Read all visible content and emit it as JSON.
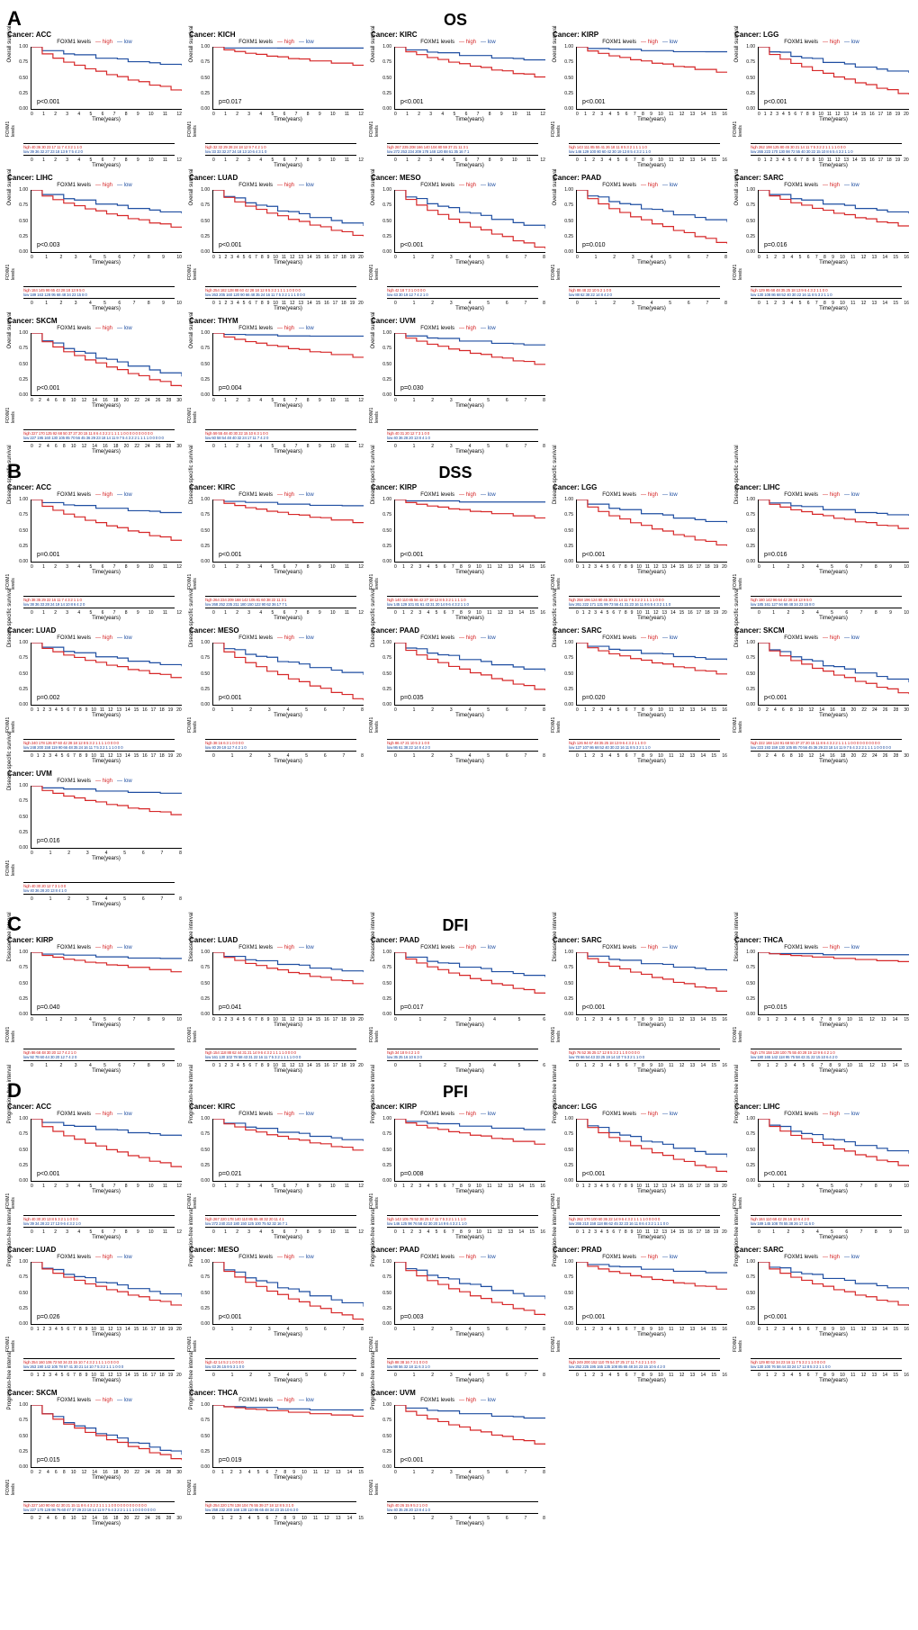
{
  "colors": {
    "high": "#d62728",
    "low": "#1f4ea1",
    "axis": "#000000",
    "bg": "#ffffff"
  },
  "legend_label": "FOXM1 levels",
  "legend_high": "high",
  "legend_low": "low",
  "xlabel": "Time(years)",
  "risk_ylabel": "FOXM1 levels",
  "risk_high_prefix": "high",
  "risk_low_prefix": "low",
  "yticks": [
    "0.00",
    "0.25",
    "0.50",
    "0.75",
    "1.00"
  ],
  "sections": [
    {
      "letter": "A",
      "title": "OS",
      "ylabel": "Overall survival",
      "panels": [
        {
          "cancer": "ACC",
          "p": "p<0.001",
          "xmax": 12,
          "high_end": 0.28,
          "low_end": 0.7,
          "risk_h": "40 36 30 23 17 11 7 4 3 2 1 1 0",
          "risk_l": "39 36 32 27 23 18 13 9 7 5 4 2 0"
        },
        {
          "cancer": "KICH",
          "p": "p=0.017",
          "xmax": 12,
          "high_end": 0.7,
          "low_end": 0.98,
          "risk_h": "32 32 29 28 24 18 12 9 7 4 2 1 0",
          "risk_l": "33 33 32 27 24 18 13 10 6 4 3 1 0"
        },
        {
          "cancer": "KIRC",
          "p": "p<0.001",
          "xmax": 12,
          "high_end": 0.5,
          "low_end": 0.78,
          "risk_h": "267 235 208 166 140 104 80 59 37 21 11 3 1",
          "risk_l": "272 253 234 209 178 148 120 88 61 35 16 7 1"
        },
        {
          "cancer": "KIRP",
          "p": "p<0.001",
          "xmax": 16,
          "high_end": 0.58,
          "low_end": 0.92,
          "risk_h": "143 111 85 55 41 26 18 11 8 5 3 2 1 1 1 1 0",
          "risk_l": "146 129 100 80 60 42 30 19 13 8 5 4 3 2 1 1 0"
        },
        {
          "cancer": "LGG",
          "p": "p<0.001",
          "xmax": 20,
          "high_end": 0.22,
          "low_end": 0.58,
          "risk_h": "262 198 125 80 45 30 21 14 11 7 5 3 2 2 1 1 1 1 0 0 0",
          "risk_l": "265 223 170 130 98 72 55 40 30 22 15 10 8 6 5 4 3 2 1 1 0"
        },
        {
          "cancer": "LIHC",
          "p": "p<0.003",
          "xmax": 10,
          "high_end": 0.38,
          "low_end": 0.62,
          "risk_h": "184 145 98 65 43 28 18 13 9 5 0",
          "risk_l": "189 163 128 95 68 48 34 23 15 8 0"
        },
        {
          "cancer": "LUAD",
          "p": "p<0.001",
          "xmax": 20,
          "high_end": 0.24,
          "low_end": 0.42,
          "risk_h": "254 182 128 88 60 42 28 18 12 8 5 3 2 1 1 1 1 0 0 0 0",
          "risk_l": "263 205 160 120 90 66 48 35 24 16 11 7 5 3 2 1 1 1 0 0 0"
        },
        {
          "cancer": "MESO",
          "p": "p<0.001",
          "xmax": 8,
          "high_end": 0.04,
          "low_end": 0.38,
          "risk_h": "42 18 7 3 1 0 0 0 0",
          "risk_l": "43 30 19 12 7 4 2 1 0"
        },
        {
          "cancer": "PAAD",
          "p": "p=0.010",
          "xmax": 8,
          "high_end": 0.12,
          "low_end": 0.48,
          "risk_h": "88 48 22 10 5 2 1 0 0",
          "risk_l": "88 62 38 22 14 8 4 2 0"
        },
        {
          "cancer": "SARC",
          "p": "p=0.016",
          "xmax": 16,
          "high_end": 0.4,
          "low_end": 0.62,
          "risk_h": "129 95 68 48 35 25 18 13 9 6 4 3 2 1 1 0 0",
          "risk_l": "130 108 86 68 52 40 30 22 16 11 8 5 3 2 1 1 0"
        },
        {
          "cancer": "SKCM",
          "p": "p<0.001",
          "xmax": 30,
          "high_end": 0.12,
          "low_end": 0.3,
          "risk_h": "227 170 125 92 68 50 37 27 20 15 11 8 6 4 3 2 2 1 1 1 1 0 0 0 0 0 0 0 0 0 0",
          "risk_l": "227 195 160 130 105 85 70 56 45 36 29 23 18 14 11 9 7 5 4 3 2 2 1 1 1 1 0 0 0 0 0"
        },
        {
          "cancer": "THYM",
          "p": "p=0.004",
          "xmax": 12,
          "high_end": 0.6,
          "low_end": 0.95,
          "risk_h": "59 55 48 40 30 22 15 10 6 3 1 0 0",
          "risk_l": "60 58 54 48 40 32 24 17 11 7 4 2 0"
        },
        {
          "cancer": "UVM",
          "p": "p=0.030",
          "xmax": 8,
          "high_end": 0.48,
          "low_end": 0.8,
          "risk_h": "40 31 20 12 7 3 1 0 0",
          "risk_l": "40 36 28 20 13 8 4 1 0"
        }
      ]
    },
    {
      "letter": "B",
      "title": "DSS",
      "ylabel": "Disease-specific survival",
      "panels": [
        {
          "cancer": "ACC",
          "p": "p=0.001",
          "xmax": 12,
          "high_end": 0.32,
          "low_end": 0.78,
          "risk_h": "38 35 29 22 16 11 7 4 3 2 1 1 0",
          "risk_l": "38 36 33 28 24 19 14 10 8 6 4 2 0"
        },
        {
          "cancer": "KIRC",
          "p": "p<0.001",
          "xmax": 12,
          "high_end": 0.62,
          "low_end": 0.9,
          "risk_h": "264 234 209 168 142 105 81 60 38 22 11 3 1",
          "risk_l": "268 252 235 211 180 150 122 90 62 36 17 7 1"
        },
        {
          "cancer": "KIRP",
          "p": "p<0.001",
          "xmax": 16,
          "high_end": 0.7,
          "low_end": 0.96,
          "risk_h": "140 110 85 56 42 27 18 12 8 5 3 2 1 1 1 1 0",
          "risk_l": "145 129 101 81 61 43 31 20 14 9 6 4 3 2 1 1 0"
        },
        {
          "cancer": "LGG",
          "p": "p<0.001",
          "xmax": 20,
          "high_end": 0.24,
          "low_end": 0.62,
          "risk_h": "258 196 124 80 45 30 21 14 11 7 5 3 2 2 1 1 1 1 0 0 0",
          "risk_l": "261 222 171 131 99 73 56 41 31 23 16 11 8 6 5 4 3 2 1 1 0"
        },
        {
          "cancer": "LIHC",
          "p": "p=0.016",
          "xmax": 10,
          "high_end": 0.52,
          "low_end": 0.74,
          "risk_h": "180 142 96 64 42 28 18 13 9 5 0",
          "risk_l": "185 161 127 94 68 48 34 23 15 8 0"
        },
        {
          "cancer": "LUAD",
          "p": "p=0.002",
          "xmax": 20,
          "high_end": 0.42,
          "low_end": 0.62,
          "risk_h": "240 178 126 87 60 42 28 18 12 8 5 3 2 1 1 1 1 0 0 0 0",
          "risk_l": "248 200 158 119 90 66 48 35 24 16 11 7 5 3 2 1 1 1 0 0 0"
        },
        {
          "cancer": "MESO",
          "p": "p<0.001",
          "xmax": 8,
          "high_end": 0.06,
          "low_end": 0.48,
          "risk_h": "38 16 6 3 1 0 0 0 0",
          "risk_l": "40 29 19 12 7 4 2 1 0"
        },
        {
          "cancer": "PAAD",
          "p": "p=0.035",
          "xmax": 8,
          "high_end": 0.22,
          "low_end": 0.54,
          "risk_h": "86 47 21 10 5 2 1 0 0",
          "risk_l": "86 61 38 22 14 8 4 2 0"
        },
        {
          "cancer": "SARC",
          "p": "p=0.020",
          "xmax": 16,
          "high_end": 0.48,
          "low_end": 0.72,
          "risk_h": "126 94 67 48 35 25 18 13 9 6 4 3 2 1 1 0 0",
          "risk_l": "127 107 86 68 52 40 30 22 16 11 8 5 3 2 1 1 0"
        },
        {
          "cancer": "SKCM",
          "p": "p<0.001",
          "xmax": 30,
          "high_end": 0.16,
          "low_end": 0.36,
          "risk_h": "222 168 124 91 68 50 37 27 20 15 11 8 6 4 3 2 2 1 1 1 1 0 0 0 0 0 0 0 0 0 0",
          "risk_l": "223 193 159 130 105 85 70 56 45 36 29 23 18 14 11 9 7 5 4 3 2 2 1 1 1 1 0 0 0 0 0"
        },
        {
          "cancer": "UVM",
          "p": "p=0.016",
          "xmax": 8,
          "high_end": 0.52,
          "low_end": 0.88,
          "risk_h": "40 30 20 12 7 3 1 0 0",
          "risk_l": "40 36 28 20 13 8 4 1 0"
        }
      ]
    },
    {
      "letter": "C",
      "title": "DFI",
      "ylabel": "Disease-free interval",
      "panels": [
        {
          "cancer": "KIRP",
          "p": "p=0.040",
          "xmax": 10,
          "high_end": 0.68,
          "low_end": 0.9,
          "risk_h": "86 68 48 30 20 12 7 4 2 1 0",
          "risk_l": "92 78 60 44 30 20 12 7 4 2 0"
        },
        {
          "cancer": "LUAD",
          "p": "p=0.041",
          "xmax": 20,
          "high_end": 0.48,
          "low_end": 0.68,
          "risk_h": "154 118 88 62 44 31 21 14 9 6 4 3 2 1 1 1 1 0 0 0 0",
          "risk_l": "161 130 102 78 58 43 31 22 16 11 7 5 3 2 1 1 1 1 0 0 0"
        },
        {
          "cancer": "PAAD",
          "p": "p=0.017",
          "xmax": 6,
          "high_end": 0.32,
          "low_end": 0.6,
          "risk_h": "34 18 9 4 2 1 0",
          "risk_l": "35 25 16 10 6 3 0"
        },
        {
          "cancer": "SARC",
          "p": "p<0.001",
          "xmax": 16,
          "high_end": 0.35,
          "low_end": 0.7,
          "risk_h": "76 52 36 25 17 12 8 5 3 2 1 1 0 0 0 0 0",
          "risk_l": "78 66 54 43 33 25 19 14 10 7 5 3 2 1 1 0 0"
        },
        {
          "cancer": "THCA",
          "p": "p=0.015",
          "xmax": 15,
          "high_end": 0.85,
          "low_end": 0.96,
          "risk_h": "178 158 128 100 75 55 40 28 19 13 9 6 4 2 1 0",
          "risk_l": "180 165 142 118 95 75 58 43 31 22 15 10 6 4 2 0"
        }
      ]
    },
    {
      "letter": "D",
      "title": "PFI",
      "ylabel": "Progression-free interval",
      "panels": [
        {
          "cancer": "ACC",
          "p": "p<0.001",
          "xmax": 12,
          "high_end": 0.2,
          "low_end": 0.72,
          "risk_h": "40 30 20 13 8 5 3 2 1 1 0 0 0",
          "risk_l": "39 34 28 22 17 13 9 6 4 3 2 1 0"
        },
        {
          "cancer": "KIRC",
          "p": "p=0.021",
          "xmax": 12,
          "high_end": 0.48,
          "low_end": 0.64,
          "risk_h": "267 220 178 140 110 85 65 48 32 20 11 4 1",
          "risk_l": "272 240 210 180 150 125 100 75 52 32 16 7 1"
        },
        {
          "cancer": "KIRP",
          "p": "p=0.008",
          "xmax": 16,
          "high_end": 0.58,
          "low_end": 0.82,
          "risk_h": "143 105 78 52 38 25 17 11 7 5 3 2 1 1 1 1 0",
          "risk_l": "146 125 98 76 58 42 30 20 14 9 6 4 3 2 1 1 0"
        },
        {
          "cancer": "LGG",
          "p": "p<0.001",
          "xmax": 20,
          "high_end": 0.12,
          "low_end": 0.38,
          "risk_h": "262 170 100 60 36 22 14 9 6 4 3 2 1 1 1 1 0 0 0 0 0",
          "risk_l": "265 210 158 118 86 62 45 32 23 16 11 8 6 4 3 2 1 1 1 0 0"
        },
        {
          "cancer": "LIHC",
          "p": "p<0.001",
          "xmax": 10,
          "high_end": 0.22,
          "low_end": 0.44,
          "risk_h": "184 110 68 42 26 16 10 6 4 2 0",
          "risk_l": "189 145 108 78 55 38 26 17 11 6 0"
        },
        {
          "cancer": "LUAD",
          "p": "p=0.026",
          "xmax": 20,
          "high_end": 0.28,
          "low_end": 0.44,
          "risk_h": "254 160 106 72 50 34 23 15 10 7 4 3 2 1 1 1 1 0 0 0 0",
          "risk_l": "263 190 142 105 78 57 41 30 21 14 10 7 5 3 2 1 1 1 0 0 0"
        },
        {
          "cancer": "MESO",
          "p": "p<0.001",
          "xmax": 8,
          "high_end": 0.04,
          "low_end": 0.28,
          "risk_h": "42 14 5 2 1 0 0 0 0",
          "risk_l": "43 26 15 9 5 3 1 0 0"
        },
        {
          "cancer": "PAAD",
          "p": "p=0.003",
          "xmax": 8,
          "high_end": 0.12,
          "low_end": 0.4,
          "risk_h": "88 38 16 7 3 1 0 0 0",
          "risk_l": "88 56 32 18 11 6 3 1 0"
        },
        {
          "cancer": "PRAD",
          "p": "p<0.001",
          "xmax": 16,
          "high_end": 0.55,
          "low_end": 0.82,
          "risk_h": "249 200 152 110 78 54 37 25 17 11 7 4 2 1 1 0 0",
          "risk_l": "252 225 195 165 135 108 85 65 48 34 23 15 10 6 4 2 0"
        },
        {
          "cancer": "SARC",
          "p": "p<0.001",
          "xmax": 16,
          "high_end": 0.28,
          "low_end": 0.55,
          "risk_h": "129 80 52 34 23 16 11 7 5 3 2 1 1 0 0 0 0",
          "risk_l": "130 100 76 58 44 33 24 17 12 8 5 3 2 1 1 0 0"
        },
        {
          "cancer": "SKCM",
          "p": "p=0.015",
          "xmax": 30,
          "high_end": 0.1,
          "low_end": 0.2,
          "risk_h": "227 140 90 60 42 30 21 15 11 8 6 4 3 2 2 1 1 1 1 0 0 0 0 0 0 0 0 0 0 0 0",
          "risk_l": "227 170 128 98 76 60 47 37 29 23 18 14 11 9 7 5 4 3 2 2 1 1 1 1 0 0 0 0 0 0 0"
        },
        {
          "cancer": "THCA",
          "p": "p=0.019",
          "xmax": 15,
          "high_end": 0.82,
          "low_end": 0.92,
          "risk_h": "254 220 178 138 104 76 55 39 27 18 12 8 5 3 1 0",
          "risk_l": "258 232 200 168 138 110 86 65 48 34 23 15 10 6 3 0"
        },
        {
          "cancer": "UVM",
          "p": "p<0.001",
          "xmax": 8,
          "high_end": 0.35,
          "low_end": 0.78,
          "risk_h": "40 26 15 9 5 2 1 0 0",
          "risk_l": "40 35 28 20 13 8 4 1 0"
        }
      ]
    }
  ]
}
